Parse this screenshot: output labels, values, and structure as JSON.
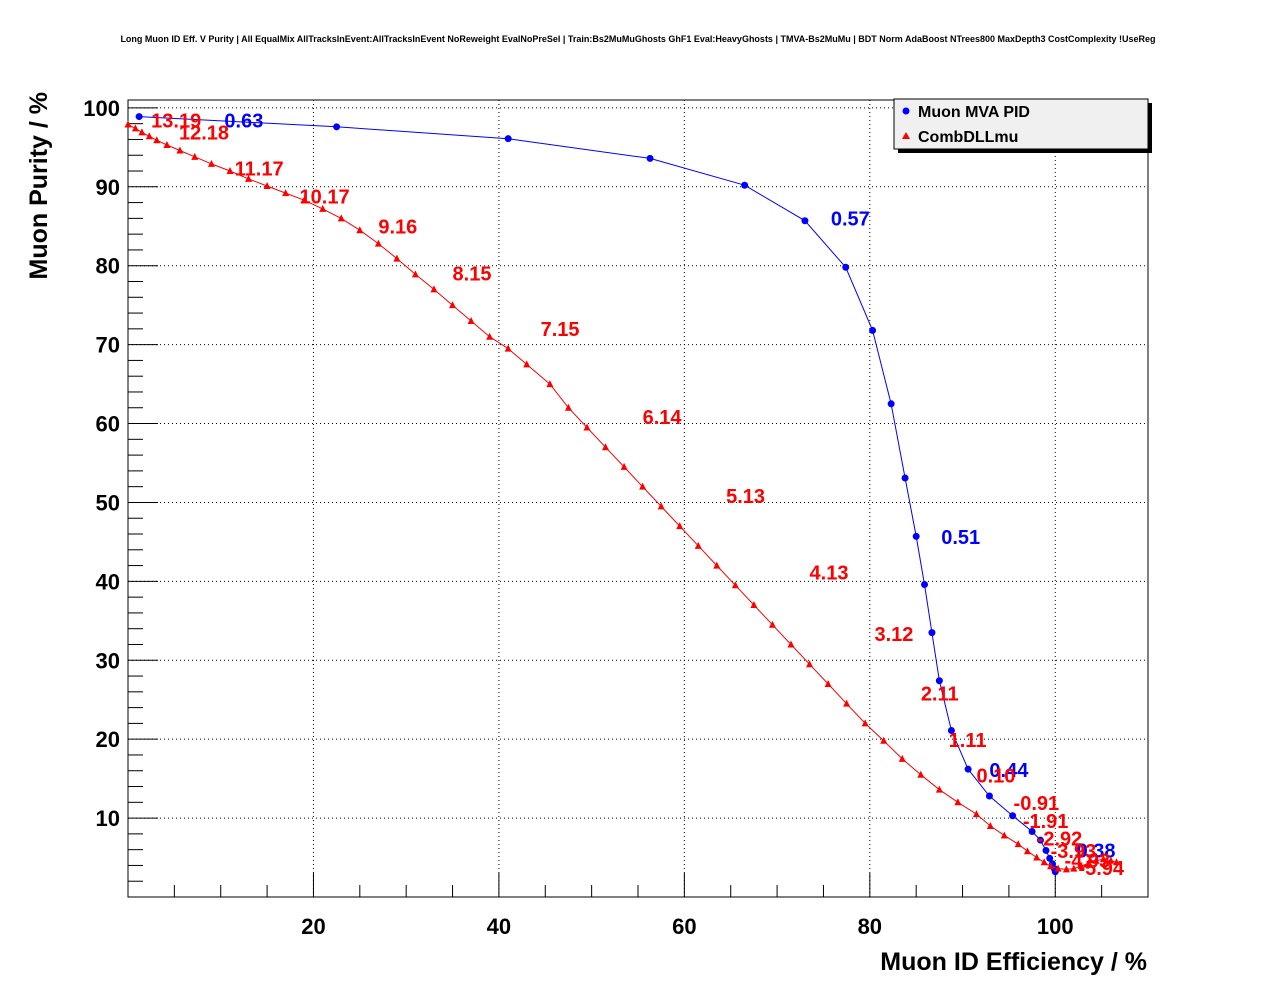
{
  "chart_data": {
    "type": "line",
    "title": "Long Muon ID Eff. V Purity | All EqualMix AllTracksInEvent:AllTracksInEvent NoReweight EvalNoPreSel | Train:Bs2MuMuGhosts GhF1 Eval:HeavyGhosts | TMVA-Bs2MuMu | BDT Norm AdaBoost NTrees800 MaxDepth3 CostComplexity !UseReg",
    "xlabel": "Muon ID Efficiency / %",
    "ylabel": "Muon Purity / %",
    "xlim": [
      0,
      110
    ],
    "ylim": [
      0,
      101
    ],
    "x_ticks": [
      20,
      40,
      60,
      80,
      100
    ],
    "y_ticks": [
      10,
      20,
      30,
      40,
      50,
      60,
      70,
      80,
      90,
      100
    ],
    "grid": true,
    "legend_position": "top-right",
    "series": [
      {
        "name": "Muon MVA PID",
        "color": "#0000ff",
        "marker": "circle",
        "x": [
          1.2,
          22.5,
          41.0,
          56.3,
          66.5,
          73.0,
          77.4,
          80.3,
          82.3,
          83.8,
          85.0,
          85.9,
          86.7,
          87.5,
          88.8,
          90.6,
          92.9,
          95.4,
          97.5,
          98.4,
          99.0,
          99.4,
          99.7,
          99.9,
          100.0
        ],
        "y": [
          98.9,
          97.6,
          96.1,
          93.6,
          90.2,
          85.7,
          79.8,
          71.8,
          62.5,
          53.1,
          45.7,
          39.6,
          33.5,
          27.4,
          21.1,
          16.2,
          12.8,
          10.3,
          8.3,
          7.2,
          5.9,
          4.9,
          4.2,
          3.6,
          3.2
        ]
      },
      {
        "name": "CombDLLmu",
        "color": "#ff0000",
        "marker": "triangle",
        "x": [
          0.0,
          0.8,
          1.5,
          2.3,
          3.1,
          4.2,
          5.6,
          7.2,
          9.0,
          11.0,
          13.0,
          15.0,
          17.0,
          19.0,
          21.0,
          23.0,
          25.0,
          27.0,
          29.0,
          31.0,
          33.0,
          35.0,
          37.0,
          39.0,
          41.0,
          43.0,
          45.5,
          47.5,
          49.5,
          51.5,
          53.5,
          55.5,
          57.5,
          59.5,
          61.5,
          63.5,
          65.5,
          67.5,
          69.5,
          71.5,
          73.5,
          75.5,
          77.5,
          79.5,
          81.5,
          83.5,
          85.5,
          87.5,
          89.5,
          91.5,
          93.0,
          94.5,
          96.0,
          97.0,
          98.0,
          98.8,
          99.5,
          100.3,
          101.2,
          102.0,
          102.8,
          103.6,
          104.4,
          105.2,
          106.0,
          106.6
        ],
        "y": [
          97.9,
          97.4,
          96.9,
          96.4,
          95.9,
          95.3,
          94.6,
          93.8,
          92.9,
          92.0,
          91.0,
          90.1,
          89.2,
          88.3,
          87.2,
          86.0,
          84.5,
          82.8,
          80.9,
          78.9,
          77.0,
          75.0,
          73.0,
          71.0,
          69.5,
          67.5,
          65.0,
          62.0,
          59.5,
          57.0,
          54.5,
          52.0,
          49.5,
          47.0,
          44.5,
          42.0,
          39.5,
          37.0,
          34.5,
          32.0,
          29.5,
          27.0,
          24.5,
          22.0,
          19.8,
          17.5,
          15.5,
          13.6,
          12.0,
          10.5,
          9.0,
          7.8,
          6.7,
          5.8,
          5.0,
          4.4,
          3.9,
          3.6,
          3.5,
          3.6,
          3.9,
          4.3,
          4.6,
          4.8,
          4.6,
          4.4
        ]
      }
    ],
    "annotations": [
      {
        "text": "0.63",
        "x": 10.4,
        "y": 98.4,
        "color": "#0000ff"
      },
      {
        "text": "0.57",
        "x": 75.8,
        "y": 86.0,
        "color": "#0000ff"
      },
      {
        "text": "0.51",
        "x": 87.7,
        "y": 45.6,
        "color": "#0000ff"
      },
      {
        "text": "0.44",
        "x": 92.9,
        "y": 16.1,
        "color": "#0000ff"
      },
      {
        "text": "0.38",
        "x": 102.3,
        "y": 5.9,
        "color": "#0000ff"
      },
      {
        "text": "13.19",
        "x": 2.5,
        "y": 98.4,
        "color": "#ff0000"
      },
      {
        "text": "12.18",
        "x": 5.5,
        "y": 96.9,
        "color": "#ff0000"
      },
      {
        "text": "11.17",
        "x": 11.5,
        "y": 92.3,
        "color": "#ff0000"
      },
      {
        "text": "10.17",
        "x": 18.5,
        "y": 88.8,
        "color": "#ff0000"
      },
      {
        "text": "9.16",
        "x": 27.0,
        "y": 85.0,
        "color": "#ff0000"
      },
      {
        "text": "8.15",
        "x": 35.0,
        "y": 79.0,
        "color": "#ff0000"
      },
      {
        "text": "7.15",
        "x": 44.5,
        "y": 72.0,
        "color": "#ff0000"
      },
      {
        "text": "6.14",
        "x": 55.5,
        "y": 60.8,
        "color": "#ff0000"
      },
      {
        "text": "5.13",
        "x": 64.5,
        "y": 50.8,
        "color": "#ff0000"
      },
      {
        "text": "4.13",
        "x": 73.5,
        "y": 41.1,
        "color": "#ff0000"
      },
      {
        "text": "3.12",
        "x": 80.5,
        "y": 33.3,
        "color": "#ff0000"
      },
      {
        "text": "2.11",
        "x": 85.5,
        "y": 25.8,
        "color": "#ff0000"
      },
      {
        "text": "1.11",
        "x": 88.5,
        "y": 19.9,
        "color": "#ff0000"
      },
      {
        "text": "0.10",
        "x": 91.5,
        "y": 15.4,
        "color": "#ff0000"
      },
      {
        "text": "-0.91",
        "x": 95.5,
        "y": 11.9,
        "color": "#ff0000"
      },
      {
        "text": "-1.91",
        "x": 96.5,
        "y": 9.6,
        "color": "#ff0000"
      },
      {
        "text": "-2.92",
        "x": 98.0,
        "y": 7.4,
        "color": "#ff0000"
      },
      {
        "text": "-3.93",
        "x": 99.5,
        "y": 5.8,
        "color": "#ff0000"
      },
      {
        "text": "-4.93",
        "x": 101.0,
        "y": 4.6,
        "color": "#ff0000"
      },
      {
        "text": "-5.94",
        "x": 102.5,
        "y": 3.7,
        "color": "#ff0000"
      }
    ]
  }
}
